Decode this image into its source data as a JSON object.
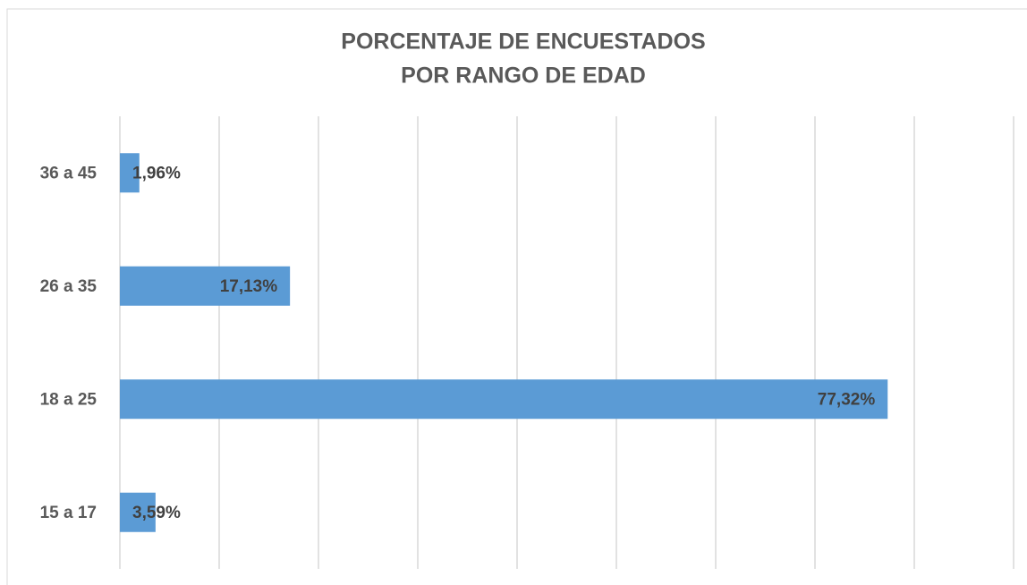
{
  "chart_data": {
    "type": "bar",
    "orientation": "horizontal",
    "title": [
      "PORCENTAJE DE ENCUESTADOS",
      "POR RANGO DE EDAD"
    ],
    "categories": [
      "15 a 17",
      "18 a 25",
      "26 a 35",
      "36 a 45"
    ],
    "values": [
      3.59,
      77.32,
      17.13,
      1.96
    ],
    "value_labels": [
      "3,59%",
      "77,32%",
      "17,13%",
      "1,96%"
    ],
    "color": "#5b9bd5",
    "xlim": [
      0,
      90
    ],
    "xticks": [
      0,
      10,
      20,
      30,
      40,
      50,
      60,
      70,
      80,
      90
    ],
    "grid": true
  }
}
